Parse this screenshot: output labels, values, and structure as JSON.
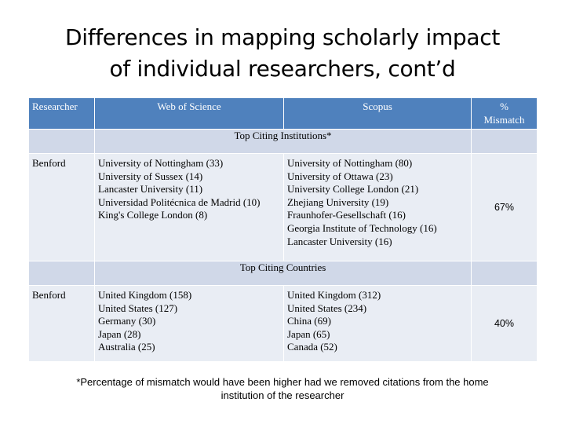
{
  "title": {
    "line1": "Differences in mapping scholarly impact",
    "line2": "of individual researchers, cont’d"
  },
  "table": {
    "headers": {
      "researcher": "Researcher",
      "wos": "Web of Science",
      "scopus": "Scopus",
      "mismatch_line1": "%",
      "mismatch_line2": "Mismatch"
    },
    "section1": {
      "label": "Top Citing Institutions*",
      "researcher": "Benford",
      "wos": [
        "University of Nottingham (33)",
        "University of Sussex (14)",
        "Lancaster University (11)",
        "Universidad Politécnica de Madrid (10)",
        "King's College London (8)"
      ],
      "scopus": [
        "University of Nottingham (80)",
        "University of Ottawa (23)",
        "University College London (21)",
        "Zhejiang University (19)",
        "Fraunhofer-Gesellschaft (16)",
        "Georgia Institute of Technology (16)",
        "Lancaster University (16)"
      ],
      "mismatch": "67%"
    },
    "section2": {
      "label": "Top Citing Countries",
      "researcher": "Benford",
      "wos": [
        "United Kingdom (158)",
        "United States (127)",
        "Germany (30)",
        "Japan (28)",
        "Australia (25)"
      ],
      "scopus": [
        "United Kingdom (312)",
        "United States (234)",
        "China (69)",
        "Japan (65)",
        "Canada (52)"
      ],
      "mismatch": "40%"
    }
  },
  "footnote": {
    "line1": "*Percentage of mismatch would have been higher had we removed citations from the home",
    "line2": "institution of the researcher"
  }
}
